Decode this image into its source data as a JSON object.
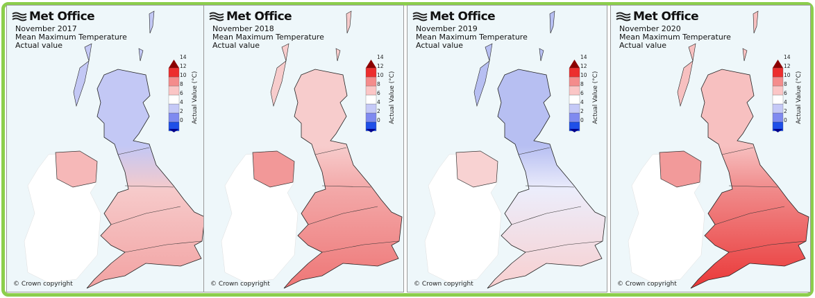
{
  "logo": "Met Office",
  "title": "Mean Maximum Temperature",
  "subtitle": "Actual value",
  "copyright": "© Crown copyright",
  "colorbar": {
    "label": "Actual Value (°C)",
    "ticks": [
      "0",
      "2",
      "4",
      "6",
      "8",
      "10",
      "12",
      "14"
    ],
    "colors": [
      "#00008b",
      "#1f4fe8",
      "#7f8af0",
      "#c5c9f7",
      "#ffffff",
      "#fbc6c6",
      "#f48c8c",
      "#ec2e2e",
      "#8b0000"
    ]
  },
  "panels": [
    {
      "period": "November 2017",
      "colors": {
        "north": "#c3c8f5",
        "mid": "#f6caca",
        "south": "#f2a2a2",
        "ni": "#f6b8b8",
        "ireland": "#ffffff"
      }
    },
    {
      "period": "November 2018",
      "colors": {
        "north": "#f7cccc",
        "mid": "#f3a8a8",
        "south": "#ee7676",
        "ni": "#f29898",
        "ireland": "#ffffff"
      }
    },
    {
      "period": "November 2019",
      "colors": {
        "north": "#b7bff2",
        "mid": "#ecedfb",
        "south": "#f8cfcf",
        "ni": "#f8d2d2",
        "ireland": "#ffffff"
      }
    },
    {
      "period": "November 2020",
      "colors": {
        "north": "#f7c0c0",
        "mid": "#f08a8a",
        "south": "#ea3838",
        "ni": "#f29a9a",
        "ireland": "#ffffff"
      }
    }
  ]
}
